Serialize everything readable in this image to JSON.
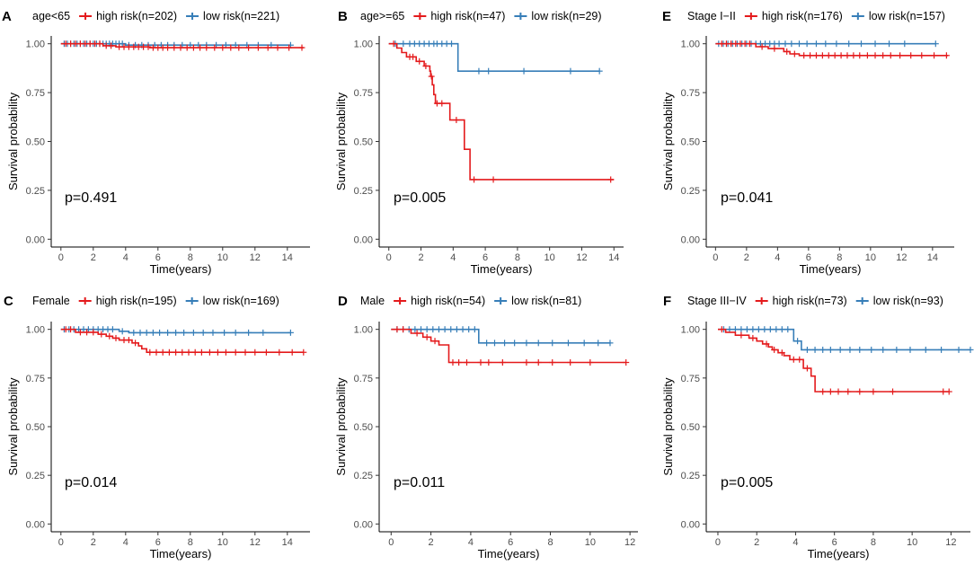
{
  "colors": {
    "high": "#e41a1c",
    "low": "#377eb8",
    "axis": "#000000"
  },
  "chart_data": [
    {
      "panel": "A",
      "type": "line",
      "title": "age<65",
      "xlabel": "Time(years)",
      "ylabel": "Survival probability",
      "xticks": [
        0,
        2,
        4,
        6,
        8,
        10,
        12,
        14
      ],
      "xlim": [
        -0.6,
        15.4
      ],
      "yticks": [
        0.0,
        0.25,
        0.5,
        0.75,
        1.0
      ],
      "ytick_labels": [
        "0.00",
        "0.25",
        "0.50",
        "0.75",
        "1.00"
      ],
      "ylim": [
        -0.04,
        1.04
      ],
      "pvalue": "p=0.491",
      "series": [
        {
          "name": "high risk(n=202)",
          "key": "high",
          "steps": [
            [
              0,
              1.0
            ],
            [
              2.6,
              0.99
            ],
            [
              3.4,
              0.984
            ],
            [
              5.5,
              0.98
            ],
            [
              15.0,
              0.98
            ]
          ],
          "censors": [
            0.3,
            0.6,
            0.9,
            1.2,
            1.5,
            1.8,
            2.1,
            2.4,
            2.8,
            3.1,
            3.6,
            3.9,
            4.2,
            4.5,
            4.8,
            5.1,
            5.4,
            5.7,
            6.0,
            6.3,
            6.6,
            7.0,
            7.4,
            7.8,
            8.2,
            8.6,
            9.0,
            9.5,
            10.0,
            10.5,
            11.0,
            11.6,
            12.2,
            12.8,
            13.4,
            14.1,
            14.9
          ]
        },
        {
          "name": "low risk(n=221)",
          "key": "low",
          "steps": [
            [
              0,
              1.0
            ],
            [
              4.0,
              0.993
            ],
            [
              14.2,
              0.993
            ]
          ],
          "censors": [
            0.2,
            0.4,
            0.6,
            0.8,
            1.0,
            1.2,
            1.4,
            1.6,
            1.8,
            2.0,
            2.2,
            2.4,
            2.6,
            2.8,
            3.0,
            3.2,
            3.4,
            3.6,
            3.8,
            4.2,
            4.6,
            5.0,
            5.4,
            5.8,
            6.2,
            6.6,
            7.0,
            7.5,
            8.0,
            8.5,
            9.0,
            9.6,
            10.2,
            10.8,
            11.5,
            12.2,
            13.0,
            14.2
          ]
        }
      ]
    },
    {
      "panel": "B",
      "type": "line",
      "title": "age>=65",
      "xlabel": "Time(years)",
      "ylabel": "Survival probability",
      "xticks": [
        0,
        2,
        4,
        6,
        8,
        10,
        12,
        14
      ],
      "xlim": [
        -0.6,
        14.6
      ],
      "yticks": [
        0.0,
        0.25,
        0.5,
        0.75,
        1.0
      ],
      "ytick_labels": [
        "0.00",
        "0.25",
        "0.50",
        "0.75",
        "1.00"
      ],
      "ylim": [
        -0.04,
        1.04
      ],
      "pvalue": "p=0.005",
      "series": [
        {
          "name": "high risk(n=47)",
          "key": "high",
          "steps": [
            [
              0,
              1.0
            ],
            [
              0.5,
              0.978
            ],
            [
              0.8,
              0.955
            ],
            [
              1.1,
              0.933
            ],
            [
              1.7,
              0.91
            ],
            [
              2.2,
              0.886
            ],
            [
              2.55,
              0.86
            ],
            [
              2.6,
              0.833
            ],
            [
              2.7,
              0.79
            ],
            [
              2.8,
              0.74
            ],
            [
              2.9,
              0.695
            ],
            [
              3.8,
              0.61
            ],
            [
              4.7,
              0.46
            ],
            [
              5.05,
              0.305
            ],
            [
              14.0,
              0.305
            ]
          ],
          "censors": [
            0.3,
            1.3,
            1.5,
            1.9,
            2.3,
            2.65,
            3.0,
            3.3,
            4.2,
            5.3,
            6.5,
            13.8
          ]
        },
        {
          "name": "low risk(n=29)",
          "key": "low",
          "steps": [
            [
              0,
              1.0
            ],
            [
              4.3,
              0.86
            ],
            [
              13.1,
              0.86
            ]
          ],
          "censors": [
            0.4,
            0.9,
            1.3,
            1.6,
            1.9,
            2.2,
            2.5,
            2.8,
            3.0,
            3.3,
            3.6,
            3.9,
            5.6,
            6.2,
            8.4,
            11.3,
            13.1
          ]
        }
      ]
    },
    {
      "panel": "E",
      "type": "line",
      "title": "Stage I−II",
      "xlabel": "Time(years)",
      "ylabel": "Survival probability",
      "xticks": [
        0,
        2,
        4,
        6,
        8,
        10,
        12,
        14
      ],
      "xlim": [
        -0.6,
        15.4
      ],
      "yticks": [
        0.0,
        0.25,
        0.5,
        0.75,
        1.0
      ],
      "ytick_labels": [
        "0.00",
        "0.25",
        "0.50",
        "0.75",
        "1.00"
      ],
      "ylim": [
        -0.04,
        1.04
      ],
      "pvalue": "p=0.041",
      "series": [
        {
          "name": "high risk(n=176)",
          "key": "high",
          "steps": [
            [
              0,
              1.0
            ],
            [
              2.6,
              0.985
            ],
            [
              3.4,
              0.975
            ],
            [
              4.4,
              0.96
            ],
            [
              4.8,
              0.948
            ],
            [
              5.4,
              0.94
            ],
            [
              15.0,
              0.94
            ]
          ],
          "censors": [
            0.4,
            0.7,
            1.0,
            1.3,
            1.6,
            1.9,
            2.2,
            3.0,
            3.8,
            4.6,
            5.1,
            5.7,
            6.1,
            6.5,
            6.9,
            7.3,
            7.7,
            8.1,
            8.5,
            8.9,
            9.3,
            9.8,
            10.3,
            10.8,
            11.3,
            11.9,
            12.6,
            13.3,
            14.1,
            14.9
          ]
        },
        {
          "name": "low risk(n=157)",
          "key": "low",
          "steps": [
            [
              0,
              1.0
            ],
            [
              14.2,
              1.0
            ]
          ],
          "censors": [
            0.2,
            0.5,
            0.8,
            1.1,
            1.4,
            1.7,
            2.0,
            2.3,
            2.6,
            2.9,
            3.2,
            3.5,
            3.8,
            4.1,
            4.5,
            4.9,
            5.4,
            5.9,
            6.5,
            7.1,
            7.8,
            8.6,
            9.4,
            10.3,
            11.2,
            12.2,
            14.2
          ]
        }
      ]
    },
    {
      "panel": "C",
      "type": "line",
      "title": "Female",
      "xlabel": "Time(years)",
      "ylabel": "Survival probability",
      "xticks": [
        0,
        2,
        4,
        6,
        8,
        10,
        12,
        14
      ],
      "xlim": [
        -0.6,
        15.4
      ],
      "yticks": [
        0.0,
        0.25,
        0.5,
        0.75,
        1.0
      ],
      "ytick_labels": [
        "0.00",
        "0.25",
        "0.50",
        "0.75",
        "1.00"
      ],
      "ylim": [
        -0.04,
        1.04
      ],
      "pvalue": "p=0.014",
      "series": [
        {
          "name": "high risk(n=195)",
          "key": "high",
          "steps": [
            [
              0,
              1.0
            ],
            [
              0.9,
              0.985
            ],
            [
              2.3,
              0.975
            ],
            [
              2.8,
              0.965
            ],
            [
              3.2,
              0.955
            ],
            [
              3.6,
              0.945
            ],
            [
              4.4,
              0.93
            ],
            [
              4.8,
              0.915
            ],
            [
              5.0,
              0.9
            ],
            [
              5.3,
              0.882
            ],
            [
              15.0,
              0.882
            ]
          ],
          "censors": [
            0.3,
            0.6,
            1.2,
            1.6,
            2.0,
            2.5,
            3.0,
            3.4,
            3.9,
            4.2,
            4.6,
            5.5,
            5.9,
            6.3,
            6.7,
            7.1,
            7.5,
            7.9,
            8.3,
            8.7,
            9.2,
            9.7,
            10.2,
            10.8,
            11.4,
            12.0,
            12.7,
            13.5,
            14.3,
            15.0
          ]
        },
        {
          "name": "low risk(n=169)",
          "key": "low",
          "steps": [
            [
              0,
              1.0
            ],
            [
              3.6,
              0.99
            ],
            [
              4.2,
              0.983
            ],
            [
              14.2,
              0.983
            ]
          ],
          "censors": [
            0.2,
            0.5,
            0.8,
            1.1,
            1.4,
            1.7,
            2.0,
            2.3,
            2.6,
            2.9,
            3.2,
            3.8,
            4.5,
            4.9,
            5.3,
            5.7,
            6.1,
            6.6,
            7.1,
            7.6,
            8.2,
            8.8,
            9.4,
            10.1,
            10.8,
            11.6,
            12.5,
            14.2
          ]
        }
      ]
    },
    {
      "panel": "D",
      "type": "line",
      "title": "Male",
      "xlabel": "Time(years)",
      "ylabel": "Survival probability",
      "xticks": [
        0,
        2,
        4,
        6,
        8,
        10,
        12
      ],
      "xlim": [
        -0.6,
        12.4
      ],
      "yticks": [
        0.0,
        0.25,
        0.5,
        0.75,
        1.0
      ],
      "ytick_labels": [
        "0.00",
        "0.25",
        "0.50",
        "0.75",
        "1.00"
      ],
      "ylim": [
        -0.04,
        1.04
      ],
      "pvalue": "p=0.011",
      "series": [
        {
          "name": "high risk(n=54)",
          "key": "high",
          "steps": [
            [
              0,
              1.0
            ],
            [
              1.0,
              0.98
            ],
            [
              1.6,
              0.96
            ],
            [
              2.0,
              0.94
            ],
            [
              2.4,
              0.92
            ],
            [
              2.9,
              0.83
            ],
            [
              11.8,
              0.83
            ]
          ],
          "censors": [
            0.3,
            0.6,
            1.3,
            1.8,
            2.2,
            3.1,
            3.4,
            3.8,
            4.5,
            4.9,
            5.6,
            6.8,
            7.4,
            8.1,
            9.0,
            10.0,
            11.8
          ]
        },
        {
          "name": "low risk(n=81)",
          "key": "low",
          "steps": [
            [
              0,
              1.0
            ],
            [
              4.4,
              0.93
            ],
            [
              11.0,
              0.93
            ]
          ],
          "censors": [
            0.3,
            0.6,
            0.9,
            1.2,
            1.5,
            1.8,
            2.1,
            2.4,
            2.7,
            3.0,
            3.3,
            3.6,
            3.9,
            4.2,
            4.8,
            5.2,
            5.7,
            6.2,
            6.8,
            7.4,
            8.1,
            8.9,
            9.7,
            10.4,
            11.0
          ]
        }
      ]
    },
    {
      "panel": "F",
      "type": "line",
      "title": "Stage III−IV",
      "xlabel": "Time(years)",
      "ylabel": "Survival probability",
      "xticks": [
        0,
        2,
        4,
        6,
        8,
        10,
        12
      ],
      "xlim": [
        -0.6,
        13.0
      ],
      "yticks": [
        0.0,
        0.25,
        0.5,
        0.75,
        1.0
      ],
      "ytick_labels": [
        "0.00",
        "0.25",
        "0.50",
        "0.75",
        "1.00"
      ],
      "ylim": [
        -0.04,
        1.04
      ],
      "pvalue": "p=0.005",
      "series": [
        {
          "name": "high risk(n=73)",
          "key": "high",
          "steps": [
            [
              0,
              1.0
            ],
            [
              0.4,
              0.985
            ],
            [
              0.9,
              0.97
            ],
            [
              1.6,
              0.955
            ],
            [
              2.0,
              0.94
            ],
            [
              2.3,
              0.925
            ],
            [
              2.6,
              0.91
            ],
            [
              2.8,
              0.895
            ],
            [
              3.1,
              0.88
            ],
            [
              3.4,
              0.865
            ],
            [
              3.7,
              0.845
            ],
            [
              4.4,
              0.8
            ],
            [
              4.8,
              0.76
            ],
            [
              5.0,
              0.68
            ],
            [
              11.9,
              0.68
            ]
          ],
          "censors": [
            0.2,
            1.2,
            1.8,
            2.5,
            2.9,
            3.3,
            3.9,
            4.2,
            4.6,
            5.4,
            5.8,
            6.2,
            6.7,
            7.3,
            8.0,
            9.0,
            11.6,
            11.9
          ]
        },
        {
          "name": "low risk(n=93)",
          "key": "low",
          "steps": [
            [
              0,
              1.0
            ],
            [
              3.9,
              0.94
            ],
            [
              4.3,
              0.895
            ],
            [
              13.0,
              0.895
            ]
          ],
          "censors": [
            0.3,
            0.6,
            0.9,
            1.2,
            1.5,
            1.8,
            2.1,
            2.4,
            2.7,
            3.0,
            3.3,
            3.6,
            4.1,
            4.6,
            5.0,
            5.4,
            5.8,
            6.3,
            6.8,
            7.3,
            7.9,
            8.5,
            9.2,
            9.9,
            10.7,
            11.5,
            12.4,
            13.0
          ]
        }
      ]
    }
  ]
}
